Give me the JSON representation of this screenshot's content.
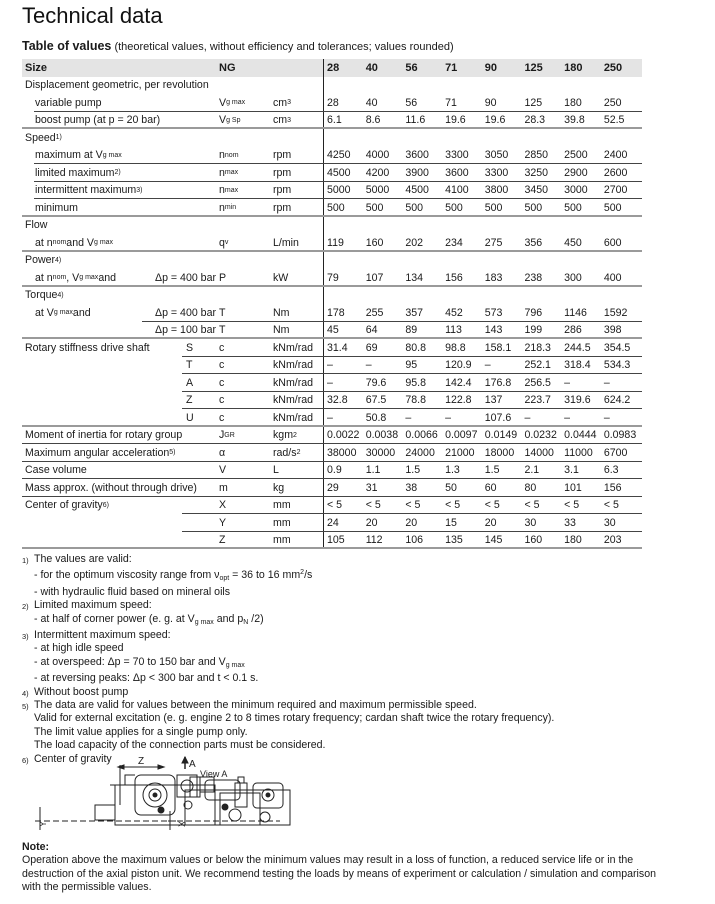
{
  "title": "Technical data",
  "subtitle": {
    "bold": "Table of values",
    "rest": " (theoretical values, without efficiency and tolerances; values rounded)"
  },
  "table": {
    "header": {
      "label": "Size",
      "symbol": "NG",
      "unit": "",
      "values": [
        "28",
        "40",
        "56",
        "71",
        "90",
        "125",
        "180",
        "250"
      ]
    },
    "rows": [
      {
        "label": [
          "Displacement geometric, per revolution"
        ],
        "line": "none"
      },
      {
        "label": [
          "variable pump"
        ],
        "symbol": [
          "V",
          {
            "sub": "g max"
          }
        ],
        "unit": [
          "cm",
          {
            "sup": "3"
          }
        ],
        "values": [
          "28",
          "40",
          "56",
          "71",
          "90",
          "125",
          "180",
          "250"
        ],
        "indent": true,
        "line": "thin",
        "start": 1
      },
      {
        "label": [
          "boost pump (at p = 20 bar)"
        ],
        "symbol": [
          "V",
          {
            "sub": "g Sp"
          }
        ],
        "unit": [
          "cm",
          {
            "sup": "3"
          }
        ],
        "values": [
          "6.1",
          "8.6",
          "11.6",
          "19.6",
          "19.6",
          "28.3",
          "39.8",
          "52.5"
        ],
        "indent": true,
        "line": "thick"
      },
      {
        "label": [
          "Speed",
          {
            "sup": "1)"
          }
        ],
        "line": "none"
      },
      {
        "label": [
          "maximum at V",
          {
            "sub": "g max"
          }
        ],
        "symbol": [
          "n",
          {
            "sub": "nom"
          }
        ],
        "unit": [
          "rpm"
        ],
        "values": [
          "4250",
          "4000",
          "3600",
          "3300",
          "3050",
          "2850",
          "2500",
          "2400"
        ],
        "indent": true,
        "line": "thin",
        "start": 1
      },
      {
        "label": [
          "limited maximum",
          {
            "sup": "2)"
          }
        ],
        "symbol": [
          "n",
          {
            "sub": "max"
          }
        ],
        "unit": [
          "rpm"
        ],
        "values": [
          "4500",
          "4200",
          "3900",
          "3600",
          "3300",
          "3250",
          "2900",
          "2600"
        ],
        "indent": true,
        "line": "thin",
        "start": 1
      },
      {
        "label": [
          "intermittent maximum",
          {
            "sup": "3)"
          }
        ],
        "symbol": [
          "n",
          {
            "sub": "max"
          }
        ],
        "unit": [
          "rpm"
        ],
        "values": [
          "5000",
          "5000",
          "4500",
          "4100",
          "3800",
          "3450",
          "3000",
          "2700"
        ],
        "indent": true,
        "line": "thin",
        "start": 1
      },
      {
        "label": [
          "minimum"
        ],
        "symbol": [
          "n",
          {
            "sub": "min"
          }
        ],
        "unit": [
          "rpm"
        ],
        "values": [
          "500",
          "500",
          "500",
          "500",
          "500",
          "500",
          "500",
          "500"
        ],
        "indent": true,
        "line": "thick"
      },
      {
        "label": [
          "Flow"
        ],
        "line": "none"
      },
      {
        "label": [
          "at n",
          {
            "sub": "nom"
          },
          " and V",
          {
            "sub": "g max"
          }
        ],
        "symbol": [
          "q",
          {
            "sub": "v"
          }
        ],
        "unit": [
          "L/min"
        ],
        "values": [
          "119",
          "160",
          "202",
          "234",
          "275",
          "356",
          "450",
          "600"
        ],
        "indent": true,
        "line": "thick"
      },
      {
        "label": [
          "Power",
          {
            "sup": "4)"
          }
        ],
        "line": "none"
      },
      {
        "label": [
          "at n",
          {
            "sub": "nom"
          },
          ", V",
          {
            "sub": "g max"
          },
          " and"
        ],
        "extra": [
          "Δp = 400 bar"
        ],
        "extraType": "dp",
        "symbol": [
          "P"
        ],
        "unit": [
          "kW"
        ],
        "values": [
          "79",
          "107",
          "134",
          "156",
          "183",
          "238",
          "300",
          "400"
        ],
        "indent": true,
        "line": "thick"
      },
      {
        "label": [
          "Torque",
          {
            "sup": "4)"
          }
        ],
        "line": "none"
      },
      {
        "label": [
          "at V",
          {
            "sub": "g max"
          },
          " and"
        ],
        "extra": [
          "Δp = 400 bar"
        ],
        "extraType": "dp",
        "symbol": [
          "T"
        ],
        "unit": [
          "Nm"
        ],
        "values": [
          "178",
          "255",
          "357",
          "452",
          "573",
          "796",
          "1146",
          "1592"
        ],
        "indent": true,
        "line": "thin",
        "start": 2
      },
      {
        "label": [
          ""
        ],
        "extra": [
          "Δp = 100 bar"
        ],
        "extraType": "dp",
        "symbol": [
          "T"
        ],
        "unit": [
          "Nm"
        ],
        "values": [
          "45",
          "64",
          "89",
          "113",
          "143",
          "199",
          "286",
          "398"
        ],
        "indent": true,
        "line": "thick"
      },
      {
        "label": [
          "Rotary stiffness drive shaft"
        ],
        "extra": [
          "S"
        ],
        "extraType": "lt",
        "symbol": [
          "c"
        ],
        "unit": [
          "kNm/rad"
        ],
        "values": [
          "31.4",
          "69",
          "80.8",
          "98.8",
          "158.1",
          "218.3",
          "244.5",
          "354.5"
        ],
        "line": "thin",
        "start": 3
      },
      {
        "label": [
          ""
        ],
        "extra": [
          "T"
        ],
        "extraType": "lt",
        "symbol": [
          "c"
        ],
        "unit": [
          "kNm/rad"
        ],
        "values": [
          "–",
          "–",
          "95",
          "120.9",
          "–",
          "252.1",
          "318.4",
          "534.3"
        ],
        "line": "thin",
        "start": 3
      },
      {
        "label": [
          ""
        ],
        "extra": [
          "A"
        ],
        "extraType": "lt",
        "symbol": [
          "c"
        ],
        "unit": [
          "kNm/rad"
        ],
        "values": [
          "–",
          "79.6",
          "95.8",
          "142.4",
          "176.8",
          "256.5",
          "–",
          "–"
        ],
        "line": "thin",
        "start": 3
      },
      {
        "label": [
          ""
        ],
        "extra": [
          "Z"
        ],
        "extraType": "lt",
        "symbol": [
          "c"
        ],
        "unit": [
          "kNm/rad"
        ],
        "values": [
          "32.8",
          "67.5",
          "78.8",
          "122.8",
          "137",
          "223.7",
          "319.6",
          "624.2"
        ],
        "line": "thin",
        "start": 3
      },
      {
        "label": [
          ""
        ],
        "extra": [
          "U"
        ],
        "extraType": "lt",
        "symbol": [
          "c"
        ],
        "unit": [
          "kNm/rad"
        ],
        "values": [
          "–",
          "50.8",
          "–",
          "–",
          "107.6",
          "–",
          "–",
          "–"
        ],
        "line": "thick"
      },
      {
        "label": [
          "Moment of inertia for rotary group"
        ],
        "symbol": [
          "J",
          {
            "sub": "GR"
          }
        ],
        "unit": [
          "kgm",
          {
            "sup": "2"
          }
        ],
        "values": [
          "0.0022",
          "0.0038",
          "0.0066",
          "0.0097",
          "0.0149",
          "0.0232",
          "0.0444",
          "0.0983"
        ],
        "line": "thin",
        "start": 0
      },
      {
        "label": [
          "Maximum angular acceleration",
          {
            "sup": "5)"
          }
        ],
        "symbol": [
          "α"
        ],
        "unit": [
          "rad/s",
          {
            "sup": "2"
          }
        ],
        "values": [
          "38000",
          "30000",
          "24000",
          "21000",
          "18000",
          "14000",
          "11000",
          "6700"
        ],
        "line": "thin",
        "start": 0
      },
      {
        "label": [
          "Case volume"
        ],
        "symbol": [
          "V"
        ],
        "unit": [
          "L"
        ],
        "values": [
          "0.9",
          "1.1",
          "1.5",
          "1.3",
          "1.5",
          "2.1",
          "3.1",
          "6.3"
        ],
        "line": "thin",
        "start": 0
      },
      {
        "label": [
          "Mass approx. (without through drive)"
        ],
        "symbol": [
          "m"
        ],
        "unit": [
          "kg"
        ],
        "values": [
          "29",
          "31",
          "38",
          "50",
          "60",
          "80",
          "101",
          "156"
        ],
        "line": "thin",
        "start": 0
      },
      {
        "label": [
          "Center of gravity",
          {
            "sup": "6)"
          }
        ],
        "symbol": [
          "X"
        ],
        "unit": [
          "mm"
        ],
        "values": [
          "< 5",
          "< 5",
          "< 5",
          "< 5",
          "< 5",
          "< 5",
          "< 5",
          "< 5"
        ],
        "line": "thin",
        "start": 3
      },
      {
        "label": [
          ""
        ],
        "symbol": [
          "Y"
        ],
        "unit": [
          "mm"
        ],
        "values": [
          "24",
          "20",
          "20",
          "15",
          "20",
          "30",
          "33",
          "30"
        ],
        "line": "thin",
        "start": 3
      },
      {
        "label": [
          ""
        ],
        "symbol": [
          "Z"
        ],
        "unit": [
          "mm"
        ],
        "values": [
          "105",
          "112",
          "106",
          "135",
          "145",
          "160",
          "180",
          "203"
        ],
        "line": "thick"
      }
    ]
  },
  "footnotes": [
    {
      "num": "1)",
      "lines": [
        [
          "The values are valid:"
        ],
        [
          "- for the optimum viscosity range from ν",
          {
            "sub": "opt"
          },
          " = 36 to 16 mm",
          {
            "sup": "2"
          },
          "/s"
        ],
        [
          "- with hydraulic fluid based on mineral oils"
        ]
      ]
    },
    {
      "num": "2)",
      "lines": [
        [
          "Limited maximum speed:"
        ],
        [
          "- at half of corner power (e. g. at V",
          {
            "sub": "g max"
          },
          " and p",
          {
            "sub": "N"
          },
          " /2)"
        ]
      ]
    },
    {
      "num": "3)",
      "lines": [
        [
          "Intermittent maximum speed:"
        ],
        [
          "- at high idle speed"
        ],
        [
          "- at overspeed: Δp = 70 to 150 bar and V",
          {
            "sub": "g max"
          }
        ],
        [
          "- at reversing peaks: Δp < 300 bar and t < 0.1 s."
        ]
      ]
    },
    {
      "num": "4)",
      "lines": [
        [
          "Without boost pump"
        ]
      ]
    },
    {
      "num": "5)",
      "lines": [
        [
          "The data are valid for values between the minimum required and maximum permissible speed."
        ],
        [
          "Valid for external excitation (e. g. engine 2 to 8 times rotary frequency; cardan shaft twice the rotary frequency)."
        ],
        [
          "The limit value applies for a single pump only."
        ],
        [
          "The load capacity of the connection parts must be considered."
        ]
      ]
    },
    {
      "num": "6)",
      "lines": [
        [
          "Center of gravity"
        ]
      ]
    }
  ],
  "figure": {
    "label_z": "Z",
    "label_a": "A",
    "label_view": "View A",
    "label_y": "Y",
    "label_x": "X"
  },
  "note": {
    "heading": "Note:",
    "text": "Operation above the maximum values or below the minimum values may result in a loss of function, a reduced service life or in the destruction of the axial piston unit. We recommend testing the loads by means of experiment or calculation / simulation and comparison with the permissible values."
  }
}
